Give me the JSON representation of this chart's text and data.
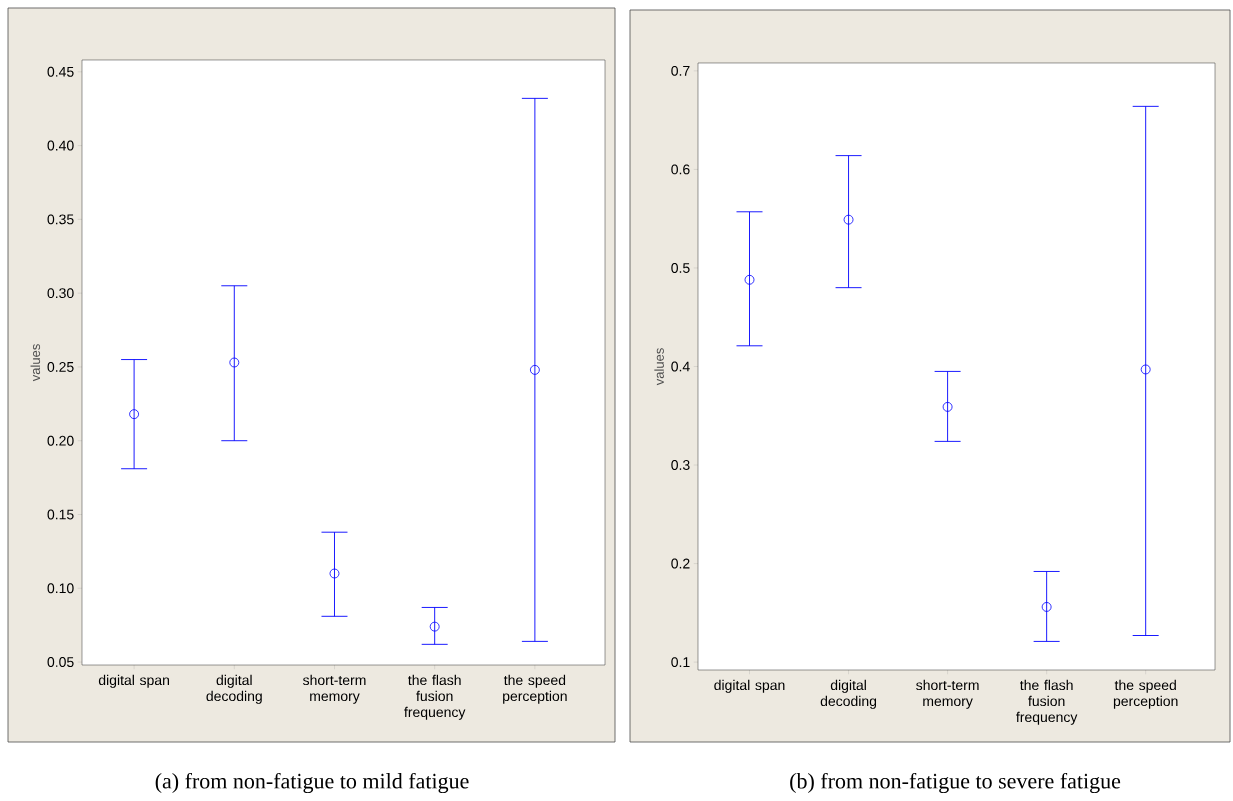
{
  "chart_data": [
    {
      "type": "scatter",
      "title": "(a) from non-fatigue to mild fatigue",
      "ylabel": "values",
      "categories": [
        "digital span",
        "digital decoding",
        "short-term memory",
        "the flash fusion frequency",
        "the speed perception"
      ],
      "values": [
        0.218,
        0.253,
        0.11,
        0.074,
        0.248
      ],
      "errors": [
        [
          0.181,
          0.255
        ],
        [
          0.2,
          0.305
        ],
        [
          0.081,
          0.138
        ],
        [
          0.062,
          0.087
        ],
        [
          0.064,
          0.432
        ]
      ],
      "color": "#0000ff",
      "marker": "circle",
      "grid": false,
      "ylim": [
        0.048,
        0.458
      ],
      "yticks": [
        0.05,
        {
          "value": 0.1,
          "label": "0.10"
        },
        0.15,
        {
          "value": 0.2,
          "label": "0.20"
        },
        0.25,
        {
          "value": 0.3,
          "label": "0.30"
        },
        0.35,
        {
          "value": 0.4,
          "label": "0.40"
        },
        0.45
      ]
    },
    {
      "type": "scatter",
      "title": "(b) from non-fatigue to severe fatigue",
      "ylabel": "values",
      "categories": [
        "digital span",
        "digital decoding",
        "short-term memory",
        "the flash fusion frequency",
        "the speed perception"
      ],
      "values": [
        0.488,
        0.549,
        0.359,
        0.156,
        0.397
      ],
      "errors": [
        [
          0.421,
          0.557
        ],
        [
          0.48,
          0.614
        ],
        [
          0.324,
          0.395
        ],
        [
          0.121,
          0.192
        ],
        [
          0.127,
          0.664
        ]
      ],
      "color": "#0000ff",
      "marker": "circle",
      "grid": false,
      "ylim": [
        0.092,
        0.708
      ],
      "yticks": [
        0.1,
        0.2,
        0.3,
        0.4,
        0.5,
        0.6,
        0.7
      ]
    }
  ]
}
